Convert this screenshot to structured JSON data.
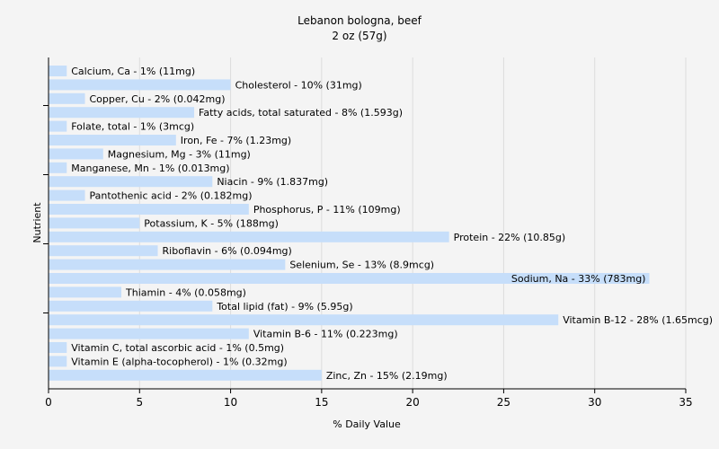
{
  "chart_data": {
    "type": "bar",
    "orientation": "horizontal",
    "title": "Lebanon bologna, beef",
    "subtitle": "2 oz (57g)",
    "xlabel": "% Daily Value",
    "ylabel": "Nutrient",
    "xlim": [
      0,
      35
    ],
    "xticks": [
      0,
      5,
      10,
      15,
      20,
      25,
      30,
      35
    ],
    "grid": true,
    "bar_color": "#c6defa",
    "categories": [
      "Calcium, Ca",
      "Cholesterol",
      "Copper, Cu",
      "Fatty acids, total saturated",
      "Folate, total",
      "Iron, Fe",
      "Magnesium, Mg",
      "Manganese, Mn",
      "Niacin",
      "Pantothenic acid",
      "Phosphorus, P",
      "Potassium, K",
      "Protein",
      "Riboflavin",
      "Selenium, Se",
      "Sodium, Na",
      "Thiamin",
      "Total lipid (fat)",
      "Vitamin B-12",
      "Vitamin B-6",
      "Vitamin C, total ascorbic acid",
      "Vitamin E (alpha-tocopherol)",
      "Zinc, Zn"
    ],
    "values": [
      1,
      10,
      2,
      8,
      1,
      7,
      3,
      1,
      9,
      2,
      11,
      5,
      22,
      6,
      13,
      33,
      4,
      9,
      28,
      11,
      1,
      1,
      15
    ],
    "labels": [
      "Calcium, Ca - 1% (11mg)",
      "Cholesterol - 10% (31mg)",
      "Copper, Cu - 2% (0.042mg)",
      "Fatty acids, total saturated - 8% (1.593g)",
      "Folate, total - 1% (3mcg)",
      "Iron, Fe - 7% (1.23mg)",
      "Magnesium, Mg - 3% (11mg)",
      "Manganese, Mn - 1% (0.013mg)",
      "Niacin - 9% (1.837mg)",
      "Pantothenic acid - 2% (0.182mg)",
      "Phosphorus, P - 11% (109mg)",
      "Potassium, K - 5% (188mg)",
      "Protein - 22% (10.85g)",
      "Riboflavin - 6% (0.094mg)",
      "Selenium, Se - 13% (8.9mcg)",
      "Sodium, Na - 33% (783mg)",
      "Thiamin - 4% (0.058mg)",
      "Total lipid (fat) - 9% (5.95g)",
      "Vitamin B-12 - 28% (1.65mcg)",
      "Vitamin B-6 - 11% (0.223mg)",
      "Vitamin C, total ascorbic acid - 1% (0.5mg)",
      "Vitamin E (alpha-tocopherol) - 1% (0.32mg)",
      "Zinc, Zn - 15% (2.19mg)"
    ]
  }
}
